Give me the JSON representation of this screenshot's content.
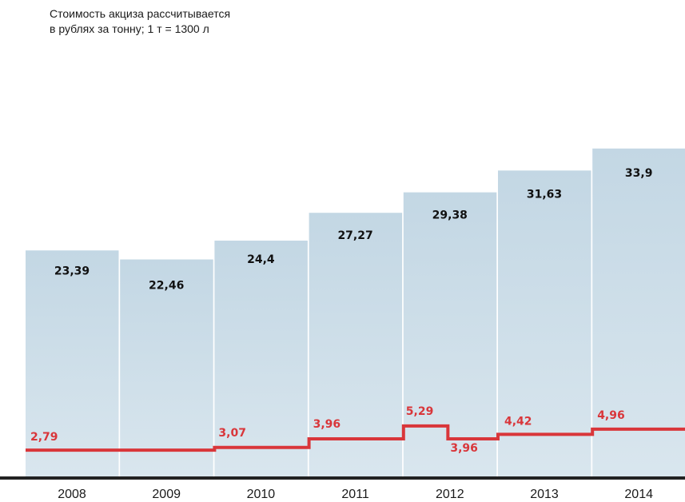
{
  "chart_data": {
    "type": "bar",
    "subtitle_lines": [
      "Стоимость акциза рассчитывается",
      "в рублях за тонну; 1 т = 1300 л"
    ],
    "categories": [
      "2008",
      "2009",
      "2010",
      "2011",
      "2012",
      "2013",
      "2014"
    ],
    "series": [
      {
        "type": "bar",
        "values": [
          23.39,
          22.46,
          24.4,
          27.27,
          29.38,
          31.63,
          33.9
        ],
        "labels": [
          "23,39",
          "22,46",
          "24,4",
          "27,27",
          "29,38",
          "31,63",
          "33,9"
        ]
      },
      {
        "type": "step-line",
        "points": [
          {
            "x": "2008",
            "value": 2.79,
            "label": "2,79"
          },
          {
            "x": "2010",
            "value": 3.07,
            "label": "3,07"
          },
          {
            "x": "2011",
            "value": 3.96,
            "label": "3,96"
          },
          {
            "x": "2012",
            "value": 5.29,
            "label": "5,29"
          },
          {
            "x": "2012",
            "value": 3.96,
            "label": "3,96"
          },
          {
            "x": "2013",
            "value": 4.42,
            "label": "4,42"
          },
          {
            "x": "2014",
            "value": 4.96,
            "label": "4,96"
          }
        ]
      }
    ],
    "grid": false,
    "colors": {
      "bar_top": "#c3d7e4",
      "bar_bottom": "#d9e6ee",
      "line": "#d9363a",
      "axis": "#222222"
    }
  }
}
